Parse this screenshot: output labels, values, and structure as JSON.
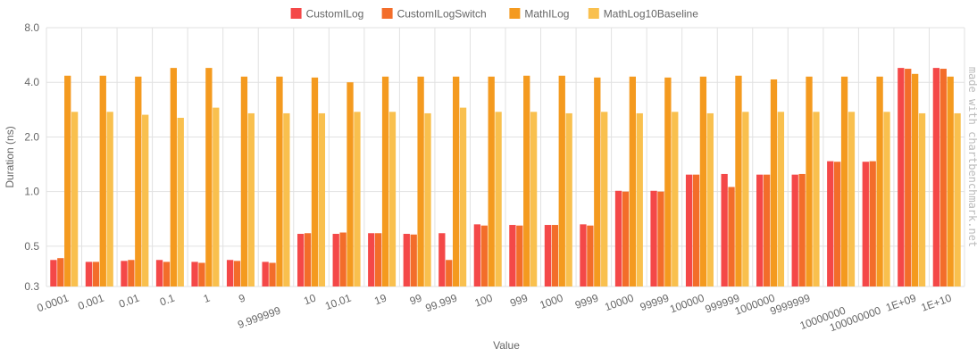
{
  "chart_data": {
    "type": "bar",
    "title": "",
    "xlabel": "Value",
    "ylabel": "Duration (ns)",
    "y_scale": "log2",
    "ylim": [
      0.3,
      8.0
    ],
    "y_ticks": [
      0.3,
      0.5,
      1.0,
      2.0,
      4.0,
      8.0
    ],
    "y_tick_labels": [
      "0.3",
      "0.5",
      "1.0",
      "2.0",
      "4.0",
      "8.0"
    ],
    "grid": true,
    "legend_position": "top",
    "watermark": "made with chartbenchmark.net",
    "categories": [
      "0.0001",
      "0.001",
      "0.01",
      "0.1",
      "1",
      "9",
      "9.999999",
      "10",
      "10.01",
      "19",
      "99",
      "99.999",
      "100",
      "999",
      "1000",
      "9999",
      "10000",
      "99999",
      "100000",
      "999999",
      "1000000",
      "9999999",
      "10000000",
      "100000000",
      "1E+09",
      "1E+10"
    ],
    "series": [
      {
        "name": "CustomILog",
        "color": "#F44848",
        "values": [
          0.42,
          0.41,
          0.415,
          0.42,
          0.41,
          0.42,
          0.41,
          0.585,
          0.585,
          0.59,
          0.585,
          0.59,
          0.66,
          0.655,
          0.655,
          0.66,
          1.01,
          1.01,
          1.24,
          1.25,
          1.24,
          1.24,
          1.47,
          1.46,
          4.8,
          4.8
        ]
      },
      {
        "name": "CustomILogSwitch",
        "color": "#F36D2A",
        "values": [
          0.43,
          0.41,
          0.42,
          0.41,
          0.405,
          0.415,
          0.405,
          0.59,
          0.595,
          0.59,
          0.58,
          0.42,
          0.65,
          0.65,
          0.655,
          0.65,
          1.0,
          1.0,
          1.24,
          1.06,
          1.24,
          1.25,
          1.46,
          1.47,
          4.75,
          4.75
        ]
      },
      {
        "name": "MathILog",
        "color": "#F49A1F",
        "values": [
          4.35,
          4.35,
          4.3,
          4.8,
          4.8,
          4.3,
          4.3,
          4.25,
          4.0,
          4.3,
          4.3,
          4.3,
          4.3,
          4.35,
          4.35,
          4.25,
          4.3,
          4.25,
          4.3,
          4.35,
          4.15,
          4.3,
          4.3,
          4.3,
          4.45,
          4.3
        ]
      },
      {
        "name": "MathLog10Baseline",
        "color": "#F9C04E",
        "values": [
          2.75,
          2.75,
          2.65,
          2.55,
          2.9,
          2.7,
          2.7,
          2.7,
          2.75,
          2.75,
          2.7,
          2.9,
          2.75,
          2.75,
          2.7,
          2.75,
          2.7,
          2.75,
          2.7,
          2.75,
          2.75,
          2.75,
          2.75,
          2.75,
          2.7,
          2.7
        ]
      }
    ]
  }
}
